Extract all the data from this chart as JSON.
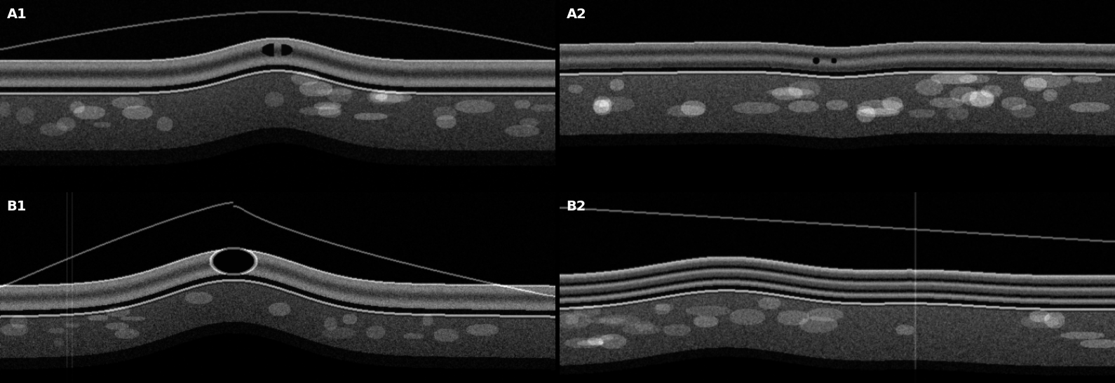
{
  "labels": [
    "A1",
    "A2",
    "B1",
    "B2"
  ],
  "label_fontsize": 14,
  "label_color": "white",
  "label_fontweight": "bold",
  "background_color": "black",
  "fig_width": 15.9,
  "fig_height": 5.46,
  "hspace": 0.008,
  "wspace": 0.008
}
